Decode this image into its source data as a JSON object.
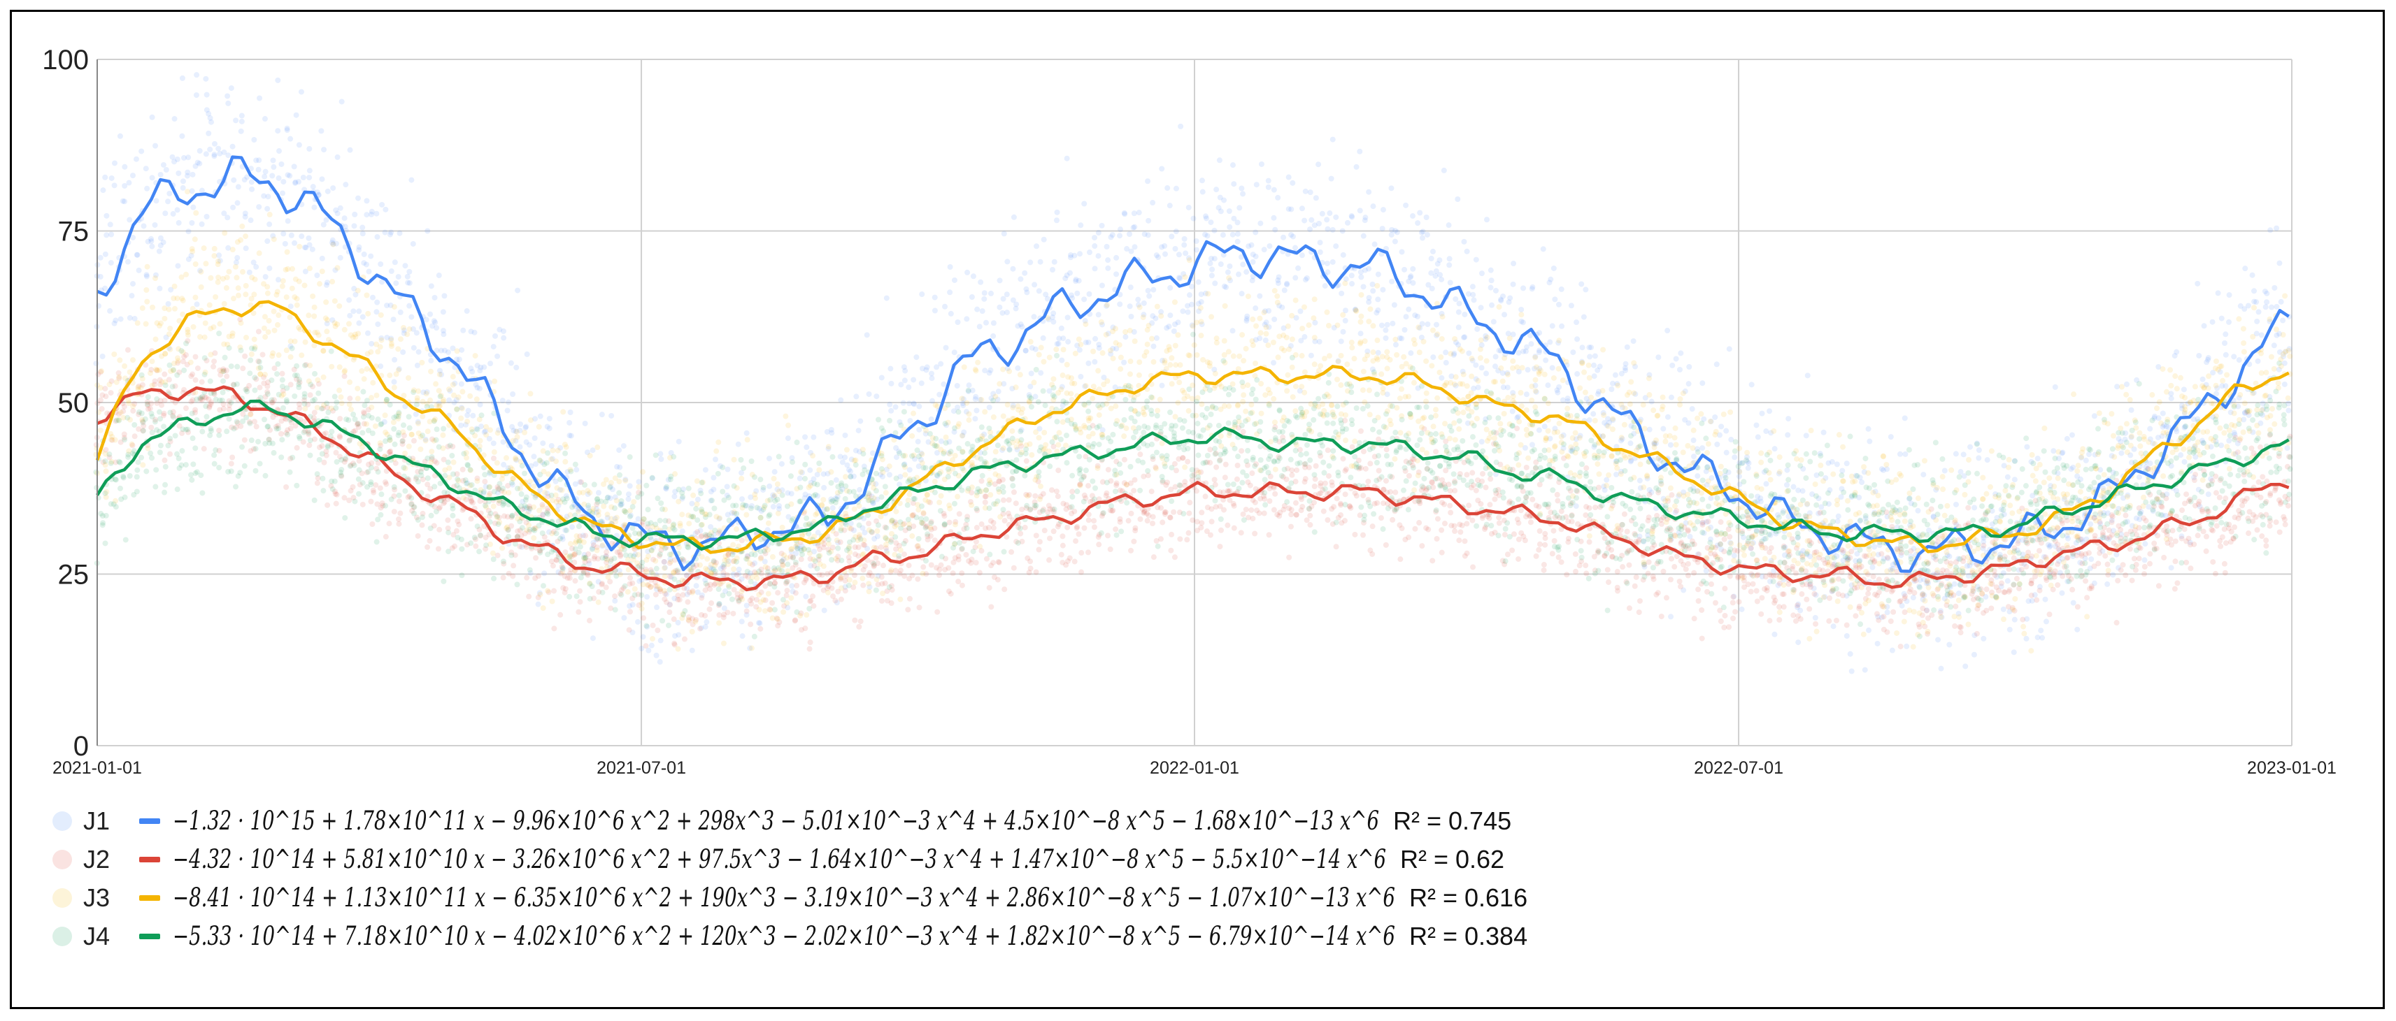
{
  "chart_data": {
    "type": "scatter",
    "title": "",
    "xlabel": "",
    "ylabel": "",
    "xlim": [
      "2021-01-01",
      "2023-01-01"
    ],
    "ylim": [
      0,
      100
    ],
    "x_ticks": [
      "2021-01-01",
      "2021-07-01",
      "2022-01-01",
      "2022-07-01",
      "2023-01-01"
    ],
    "y_ticks": [
      "0",
      "25",
      "50",
      "75",
      "100"
    ],
    "grid": true,
    "legend_position": "bottom",
    "series": [
      {
        "name": "J1",
        "color": "#4285F4",
        "formula": "−1.32 · 10^15 + 1.78×10^11 x − 9.96×10^6 x^2 + 298x^3 − 5.01×10^−3 x^4 + 4.5×10^−8 x^5 − 1.68×10^−13 x^6",
        "r2": "R² = 0.745",
        "trend_x": [
          "2021-01-01",
          "2021-01-15",
          "2021-02-01",
          "2021-02-15",
          "2021-03-01",
          "2021-03-15",
          "2021-04-01",
          "2021-04-15",
          "2021-05-01",
          "2021-05-15",
          "2021-06-01",
          "2021-06-15",
          "2021-07-01",
          "2021-07-15",
          "2021-08-01",
          "2021-08-15",
          "2021-09-01",
          "2021-09-15",
          "2021-10-01",
          "2021-10-15",
          "2021-11-01",
          "2021-11-15",
          "2021-12-01",
          "2021-12-15",
          "2022-01-01",
          "2022-01-15",
          "2022-02-01",
          "2022-02-15",
          "2022-03-01",
          "2022-03-15",
          "2022-04-01",
          "2022-04-15",
          "2022-05-01",
          "2022-05-15",
          "2022-06-01",
          "2022-06-15",
          "2022-07-01",
          "2022-07-15",
          "2022-08-01",
          "2022-08-15",
          "2022-09-01",
          "2022-09-15",
          "2022-10-01",
          "2022-10-15",
          "2022-11-01",
          "2022-11-15",
          "2022-12-01",
          "2022-12-15",
          "2023-01-01"
        ],
        "trend_y": [
          65,
          78,
          81,
          83,
          82,
          78,
          70,
          63,
          56,
          47,
          38,
          33,
          30,
          29,
          30,
          32,
          33,
          40,
          47,
          55,
          59,
          63,
          66,
          68,
          70,
          72,
          71,
          70,
          70,
          67,
          63,
          60,
          56,
          50,
          44,
          40,
          37,
          33,
          31,
          29,
          28,
          29,
          30,
          32,
          36,
          42,
          48,
          55,
          62
        ]
      },
      {
        "name": "J2",
        "color": "#DB4437",
        "formula": "−4.32 · 10^14 + 5.81×10^10 x − 3.26×10^6 x^2 + 97.5x^3 − 1.64×10^−3 x^4 + 1.47×10^−8 x^5 − 5.5×10^−14 x^6",
        "r2": "R² = 0.62",
        "trend_x": [
          "2021-01-01",
          "2021-01-15",
          "2021-02-01",
          "2021-02-15",
          "2021-03-01",
          "2021-03-15",
          "2021-04-01",
          "2021-04-15",
          "2021-05-01",
          "2021-05-15",
          "2021-06-01",
          "2021-06-15",
          "2021-07-01",
          "2021-07-15",
          "2021-08-01",
          "2021-08-15",
          "2021-09-01",
          "2021-09-15",
          "2021-10-01",
          "2021-10-15",
          "2021-11-01",
          "2021-11-15",
          "2021-12-01",
          "2021-12-15",
          "2022-01-01",
          "2022-01-15",
          "2022-02-01",
          "2022-02-15",
          "2022-03-01",
          "2022-03-15",
          "2022-04-01",
          "2022-04-15",
          "2022-05-01",
          "2022-05-15",
          "2022-06-01",
          "2022-06-15",
          "2022-07-01",
          "2022-07-15",
          "2022-08-01",
          "2022-08-15",
          "2022-09-01",
          "2022-09-15",
          "2022-10-01",
          "2022-10-15",
          "2022-11-01",
          "2022-11-15",
          "2022-12-01",
          "2022-12-15",
          "2023-01-01"
        ],
        "trend_y": [
          48,
          51,
          52,
          51,
          49,
          46,
          42,
          38,
          35,
          31,
          28,
          26,
          25,
          24,
          24,
          24,
          25,
          27,
          28,
          30,
          32,
          33,
          35,
          36,
          37,
          37,
          37,
          37,
          37,
          36,
          35,
          34,
          33,
          31,
          29,
          27,
          26,
          25,
          25,
          24,
          24,
          25,
          26,
          28,
          29,
          31,
          33,
          36,
          39
        ]
      },
      {
        "name": "J3",
        "color": "#F4B400",
        "formula": "−8.41 · 10^14 + 1.13×10^11 x − 6.35×10^6 x^2 + 190x^3 − 3.19×10^−3 x^4 + 2.86×10^−8 x^5 − 1.07×10^−13 x^6",
        "r2": "R² = 0.616",
        "trend_x": [
          "2021-01-01",
          "2021-01-15",
          "2021-02-01",
          "2021-02-15",
          "2021-03-01",
          "2021-03-15",
          "2021-04-01",
          "2021-04-15",
          "2021-05-01",
          "2021-05-15",
          "2021-06-01",
          "2021-06-15",
          "2021-07-01",
          "2021-07-15",
          "2021-08-01",
          "2021-08-15",
          "2021-09-01",
          "2021-09-15",
          "2021-10-01",
          "2021-10-15",
          "2021-11-01",
          "2021-11-15",
          "2021-12-01",
          "2021-12-15",
          "2022-01-01",
          "2022-01-15",
          "2022-02-01",
          "2022-02-15",
          "2022-03-01",
          "2022-03-15",
          "2022-04-01",
          "2022-04-15",
          "2022-05-01",
          "2022-05-15",
          "2022-06-01",
          "2022-06-15",
          "2022-07-01",
          "2022-07-15",
          "2022-08-01",
          "2022-08-15",
          "2022-09-01",
          "2022-09-15",
          "2022-10-01",
          "2022-10-15",
          "2022-11-01",
          "2022-11-15",
          "2022-12-01",
          "2022-12-15",
          "2023-01-01"
        ],
        "trend_y": [
          42,
          56,
          62,
          64,
          64,
          60,
          55,
          50,
          46,
          40,
          35,
          32,
          30,
          29,
          29,
          30,
          31,
          34,
          38,
          42,
          46,
          49,
          51,
          53,
          54,
          54,
          54,
          54,
          54,
          53,
          51,
          49,
          48,
          45,
          42,
          39,
          36,
          33,
          31,
          30,
          29,
          30,
          31,
          33,
          37,
          42,
          47,
          52,
          55
        ]
      },
      {
        "name": "J4",
        "color": "#0F9D58",
        "formula": "−5.33 · 10^14 + 7.18×10^10 x − 4.02×10^6 x^2 + 120x^3 − 2.02×10^−3 x^4 + 1.82×10^−8 x^5 − 6.79×10^−14 x^6",
        "r2": "R² = 0.384",
        "trend_x": [
          "2021-01-01",
          "2021-01-15",
          "2021-02-01",
          "2021-02-15",
          "2021-03-01",
          "2021-03-15",
          "2021-04-01",
          "2021-04-15",
          "2021-05-01",
          "2021-05-15",
          "2021-06-01",
          "2021-06-15",
          "2021-07-01",
          "2021-07-15",
          "2021-08-01",
          "2021-08-15",
          "2021-09-01",
          "2021-09-15",
          "2021-10-01",
          "2021-10-15",
          "2021-11-01",
          "2021-11-15",
          "2021-12-01",
          "2021-12-15",
          "2022-01-01",
          "2022-01-15",
          "2022-02-01",
          "2022-02-15",
          "2022-03-01",
          "2022-03-15",
          "2022-04-01",
          "2022-04-15",
          "2022-05-01",
          "2022-05-15",
          "2022-06-01",
          "2022-06-15",
          "2022-07-01",
          "2022-07-15",
          "2022-08-01",
          "2022-08-15",
          "2022-09-01",
          "2022-09-15",
          "2022-10-01",
          "2022-10-15",
          "2022-11-01",
          "2022-11-15",
          "2022-12-01",
          "2022-12-15",
          "2023-01-01"
        ],
        "trend_y": [
          36,
          44,
          47,
          49,
          49,
          47,
          44,
          41,
          38,
          35,
          33,
          31,
          30,
          30,
          30,
          31,
          32,
          35,
          37,
          39,
          41,
          42,
          43,
          44,
          45,
          45,
          44,
          44,
          44,
          43,
          42,
          40,
          39,
          37,
          35,
          34,
          33,
          32,
          31,
          31,
          31,
          31,
          32,
          34,
          36,
          38,
          40,
          42,
          44
        ]
      }
    ]
  }
}
